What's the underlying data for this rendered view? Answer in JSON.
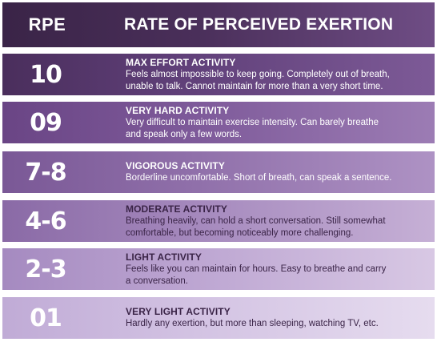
{
  "header": {
    "rpe_label": "RPE",
    "title": "RATE OF PERCEIVED EXERTION"
  },
  "rows": [
    {
      "level": "10",
      "title": "MAX EFFORT ACTIVITY",
      "line1": "Feels almost impossible to keep going. Completely out of breath,",
      "line2": "unable to talk. Cannot maintain for more than a very short time."
    },
    {
      "level": "09",
      "title": "VERY HARD ACTIVITY",
      "line1": "Very difficult to maintain exercise intensity. Can barely breathe",
      "line2": "and speak only a few words."
    },
    {
      "level": "7-8",
      "title": "VIGOROUS ACTIVITY",
      "line1": "Borderline uncomfortable. Short of breath, can speak a sentence.",
      "line2": ""
    },
    {
      "level": "4-6",
      "title": "MODERATE ACTIVITY",
      "line1": "Breathing heavily, can hold a short conversation. Still somewhat",
      "line2": "comfortable, but becoming noticeably more challenging."
    },
    {
      "level": "2-3",
      "title": "LIGHT ACTIVITY",
      "line1": "Feels like you can maintain for hours. Easy to breathe and carry",
      "line2": "a conversation."
    },
    {
      "level": "01",
      "title": "VERY LIGHT ACTIVITY",
      "line1": "Hardly any exertion, but more than sleeping, watching TV, etc.",
      "line2": ""
    }
  ]
}
